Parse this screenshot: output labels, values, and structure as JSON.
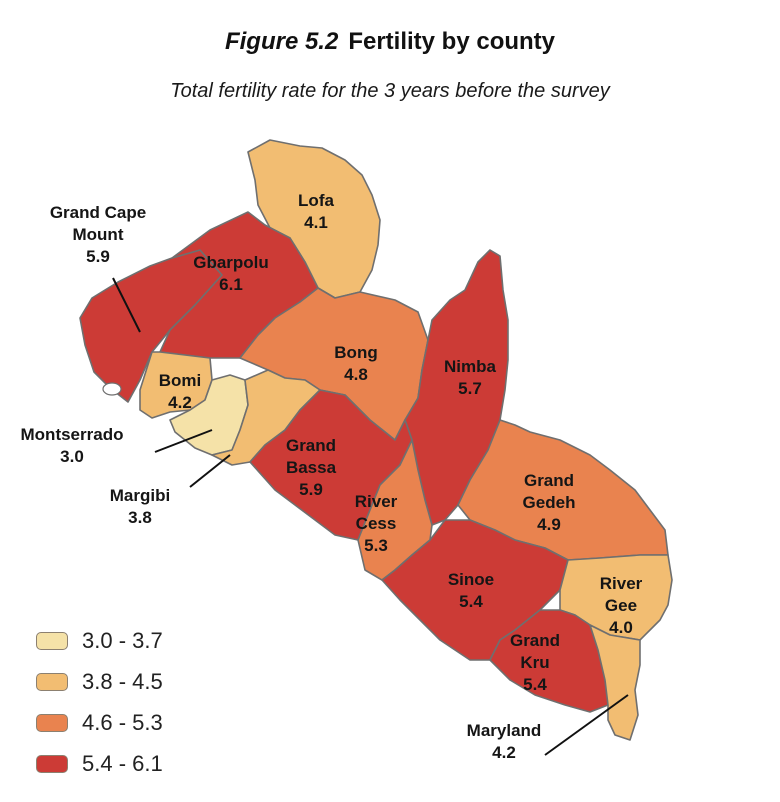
{
  "figure": {
    "number": "Figure 5.2",
    "title": "Fertility by county",
    "subtitle": "Total fertility rate for the 3 years before the survey"
  },
  "legend": [
    {
      "range": "3.0 - 3.7",
      "color": "#f5e2a8"
    },
    {
      "range": "3.8 - 4.5",
      "color": "#f2bd72"
    },
    {
      "range": "4.6 - 5.3",
      "color": "#e9834f"
    },
    {
      "range": "5.4 - 6.1",
      "color": "#cc3b36"
    }
  ],
  "counties": [
    {
      "name_lines": [
        "Lofa"
      ],
      "value": "4.1",
      "class": "3.8 - 4.5"
    },
    {
      "name_lines": [
        "Grand Cape",
        "Mount"
      ],
      "value": "5.9",
      "class": "5.4 - 6.1"
    },
    {
      "name_lines": [
        "Gbarpolu"
      ],
      "value": "6.1",
      "class": "5.4 - 6.1"
    },
    {
      "name_lines": [
        "Bong"
      ],
      "value": "4.8",
      "class": "4.6 - 5.3"
    },
    {
      "name_lines": [
        "Nimba"
      ],
      "value": "5.7",
      "class": "5.4 - 6.1"
    },
    {
      "name_lines": [
        "Bomi"
      ],
      "value": "4.2",
      "class": "3.8 - 4.5"
    },
    {
      "name_lines": [
        "Montserrado"
      ],
      "value": "3.0",
      "class": "3.0 - 3.7"
    },
    {
      "name_lines": [
        "Margibi"
      ],
      "value": "3.8",
      "class": "3.8 - 4.5"
    },
    {
      "name_lines": [
        "Grand",
        "Bassa"
      ],
      "value": "5.9",
      "class": "5.4 - 6.1"
    },
    {
      "name_lines": [
        "River",
        "Cess"
      ],
      "value": "5.3",
      "class": "4.6 - 5.3"
    },
    {
      "name_lines": [
        "Grand",
        "Gedeh"
      ],
      "value": "4.9",
      "class": "4.6 - 5.3"
    },
    {
      "name_lines": [
        "Sinoe"
      ],
      "value": "5.4",
      "class": "5.4 - 6.1"
    },
    {
      "name_lines": [
        "River",
        "Gee"
      ],
      "value": "4.0",
      "class": "3.8 - 4.5"
    },
    {
      "name_lines": [
        "Grand",
        "Kru"
      ],
      "value": "5.4",
      "class": "5.4 - 6.1"
    },
    {
      "name_lines": [
        "Maryland"
      ],
      "value": "4.2",
      "class": "3.8 - 4.5"
    }
  ]
}
